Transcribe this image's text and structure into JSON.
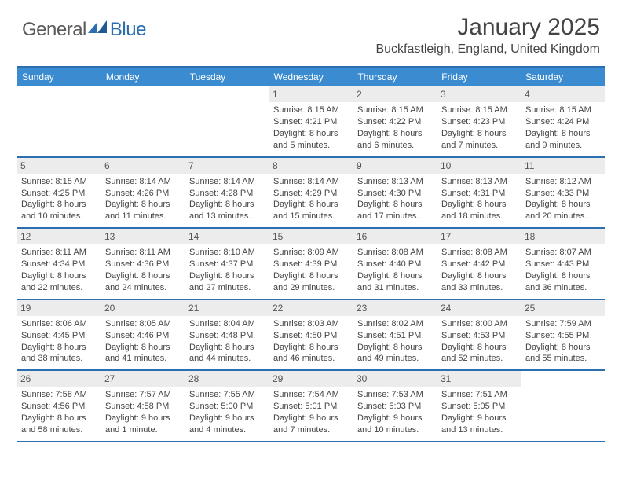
{
  "brand": {
    "part1": "General",
    "part2": "Blue"
  },
  "title": "January 2025",
  "location": "Buckfastleigh, England, United Kingdom",
  "colors": {
    "header_bg": "#3a8bd0",
    "rule": "#2c6fb0",
    "daynum_bg": "#ececec",
    "text": "#3a3a3a"
  },
  "weekdays": [
    "Sunday",
    "Monday",
    "Tuesday",
    "Wednesday",
    "Thursday",
    "Friday",
    "Saturday"
  ],
  "weeks": [
    [
      null,
      null,
      null,
      {
        "n": "1",
        "sr": "8:15 AM",
        "ss": "4:21 PM",
        "dl": "8 hours and 5 minutes."
      },
      {
        "n": "2",
        "sr": "8:15 AM",
        "ss": "4:22 PM",
        "dl": "8 hours and 6 minutes."
      },
      {
        "n": "3",
        "sr": "8:15 AM",
        "ss": "4:23 PM",
        "dl": "8 hours and 7 minutes."
      },
      {
        "n": "4",
        "sr": "8:15 AM",
        "ss": "4:24 PM",
        "dl": "8 hours and 9 minutes."
      }
    ],
    [
      {
        "n": "5",
        "sr": "8:15 AM",
        "ss": "4:25 PM",
        "dl": "8 hours and 10 minutes."
      },
      {
        "n": "6",
        "sr": "8:14 AM",
        "ss": "4:26 PM",
        "dl": "8 hours and 11 minutes."
      },
      {
        "n": "7",
        "sr": "8:14 AM",
        "ss": "4:28 PM",
        "dl": "8 hours and 13 minutes."
      },
      {
        "n": "8",
        "sr": "8:14 AM",
        "ss": "4:29 PM",
        "dl": "8 hours and 15 minutes."
      },
      {
        "n": "9",
        "sr": "8:13 AM",
        "ss": "4:30 PM",
        "dl": "8 hours and 17 minutes."
      },
      {
        "n": "10",
        "sr": "8:13 AM",
        "ss": "4:31 PM",
        "dl": "8 hours and 18 minutes."
      },
      {
        "n": "11",
        "sr": "8:12 AM",
        "ss": "4:33 PM",
        "dl": "8 hours and 20 minutes."
      }
    ],
    [
      {
        "n": "12",
        "sr": "8:11 AM",
        "ss": "4:34 PM",
        "dl": "8 hours and 22 minutes."
      },
      {
        "n": "13",
        "sr": "8:11 AM",
        "ss": "4:36 PM",
        "dl": "8 hours and 24 minutes."
      },
      {
        "n": "14",
        "sr": "8:10 AM",
        "ss": "4:37 PM",
        "dl": "8 hours and 27 minutes."
      },
      {
        "n": "15",
        "sr": "8:09 AM",
        "ss": "4:39 PM",
        "dl": "8 hours and 29 minutes."
      },
      {
        "n": "16",
        "sr": "8:08 AM",
        "ss": "4:40 PM",
        "dl": "8 hours and 31 minutes."
      },
      {
        "n": "17",
        "sr": "8:08 AM",
        "ss": "4:42 PM",
        "dl": "8 hours and 33 minutes."
      },
      {
        "n": "18",
        "sr": "8:07 AM",
        "ss": "4:43 PM",
        "dl": "8 hours and 36 minutes."
      }
    ],
    [
      {
        "n": "19",
        "sr": "8:06 AM",
        "ss": "4:45 PM",
        "dl": "8 hours and 38 minutes."
      },
      {
        "n": "20",
        "sr": "8:05 AM",
        "ss": "4:46 PM",
        "dl": "8 hours and 41 minutes."
      },
      {
        "n": "21",
        "sr": "8:04 AM",
        "ss": "4:48 PM",
        "dl": "8 hours and 44 minutes."
      },
      {
        "n": "22",
        "sr": "8:03 AM",
        "ss": "4:50 PM",
        "dl": "8 hours and 46 minutes."
      },
      {
        "n": "23",
        "sr": "8:02 AM",
        "ss": "4:51 PM",
        "dl": "8 hours and 49 minutes."
      },
      {
        "n": "24",
        "sr": "8:00 AM",
        "ss": "4:53 PM",
        "dl": "8 hours and 52 minutes."
      },
      {
        "n": "25",
        "sr": "7:59 AM",
        "ss": "4:55 PM",
        "dl": "8 hours and 55 minutes."
      }
    ],
    [
      {
        "n": "26",
        "sr": "7:58 AM",
        "ss": "4:56 PM",
        "dl": "8 hours and 58 minutes."
      },
      {
        "n": "27",
        "sr": "7:57 AM",
        "ss": "4:58 PM",
        "dl": "9 hours and 1 minute."
      },
      {
        "n": "28",
        "sr": "7:55 AM",
        "ss": "5:00 PM",
        "dl": "9 hours and 4 minutes."
      },
      {
        "n": "29",
        "sr": "7:54 AM",
        "ss": "5:01 PM",
        "dl": "9 hours and 7 minutes."
      },
      {
        "n": "30",
        "sr": "7:53 AM",
        "ss": "5:03 PM",
        "dl": "9 hours and 10 minutes."
      },
      {
        "n": "31",
        "sr": "7:51 AM",
        "ss": "5:05 PM",
        "dl": "9 hours and 13 minutes."
      },
      null
    ]
  ],
  "labels": {
    "sunrise": "Sunrise:",
    "sunset": "Sunset:",
    "daylight": "Daylight:"
  }
}
